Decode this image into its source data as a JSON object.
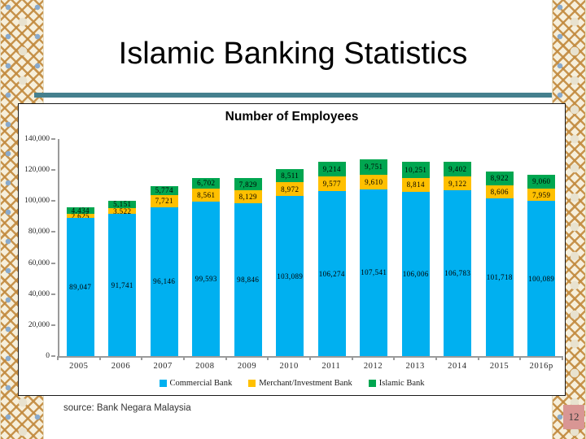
{
  "slide": {
    "title": "Islamic Banking Statistics",
    "source_note": "source: Bank Negara Malaysia",
    "page_number": "12"
  },
  "chart_data": {
    "type": "bar",
    "stacked": true,
    "title": "Number of Employees",
    "categories": [
      "2005",
      "2006",
      "2007",
      "2008",
      "2009",
      "2010",
      "2011",
      "2012",
      "2013",
      "2014",
      "2015",
      "2016p"
    ],
    "series": [
      {
        "name": "Commercial Bank",
        "color": "#00B0F0",
        "values": [
          89047,
          91741,
          96146,
          99593,
          98846,
          103089,
          106274,
          107541,
          106006,
          106783,
          101718,
          100089
        ]
      },
      {
        "name": "Merchant/Investment Bank",
        "color": "#FFC000",
        "values": [
          2625,
          3522,
          7721,
          8561,
          8129,
          8972,
          9577,
          9610,
          8814,
          9122,
          8606,
          7959
        ]
      },
      {
        "name": "Islamic Bank",
        "color": "#00A650",
        "values": [
          4434,
          5151,
          5774,
          6702,
          7829,
          8511,
          9214,
          9751,
          10251,
          9402,
          8922,
          9060
        ]
      }
    ],
    "ylim": [
      0,
      140000
    ],
    "ytick_step": 20000,
    "ytick_labels": [
      "0",
      "20,000",
      "40,000",
      "60,000",
      "80,000",
      "100,000",
      "120,000",
      "140,000"
    ],
    "legend_position": "bottom",
    "grid": false,
    "data_labels": true
  },
  "colors": {
    "divider_teal": "#45808E",
    "page_badge_bg": "#D99694",
    "axis_gray": "#9A9A9A",
    "pattern_tan": "#C28A3E",
    "pattern_blue": "#7FA3C9",
    "pattern_cream": "#F6EFDB"
  }
}
